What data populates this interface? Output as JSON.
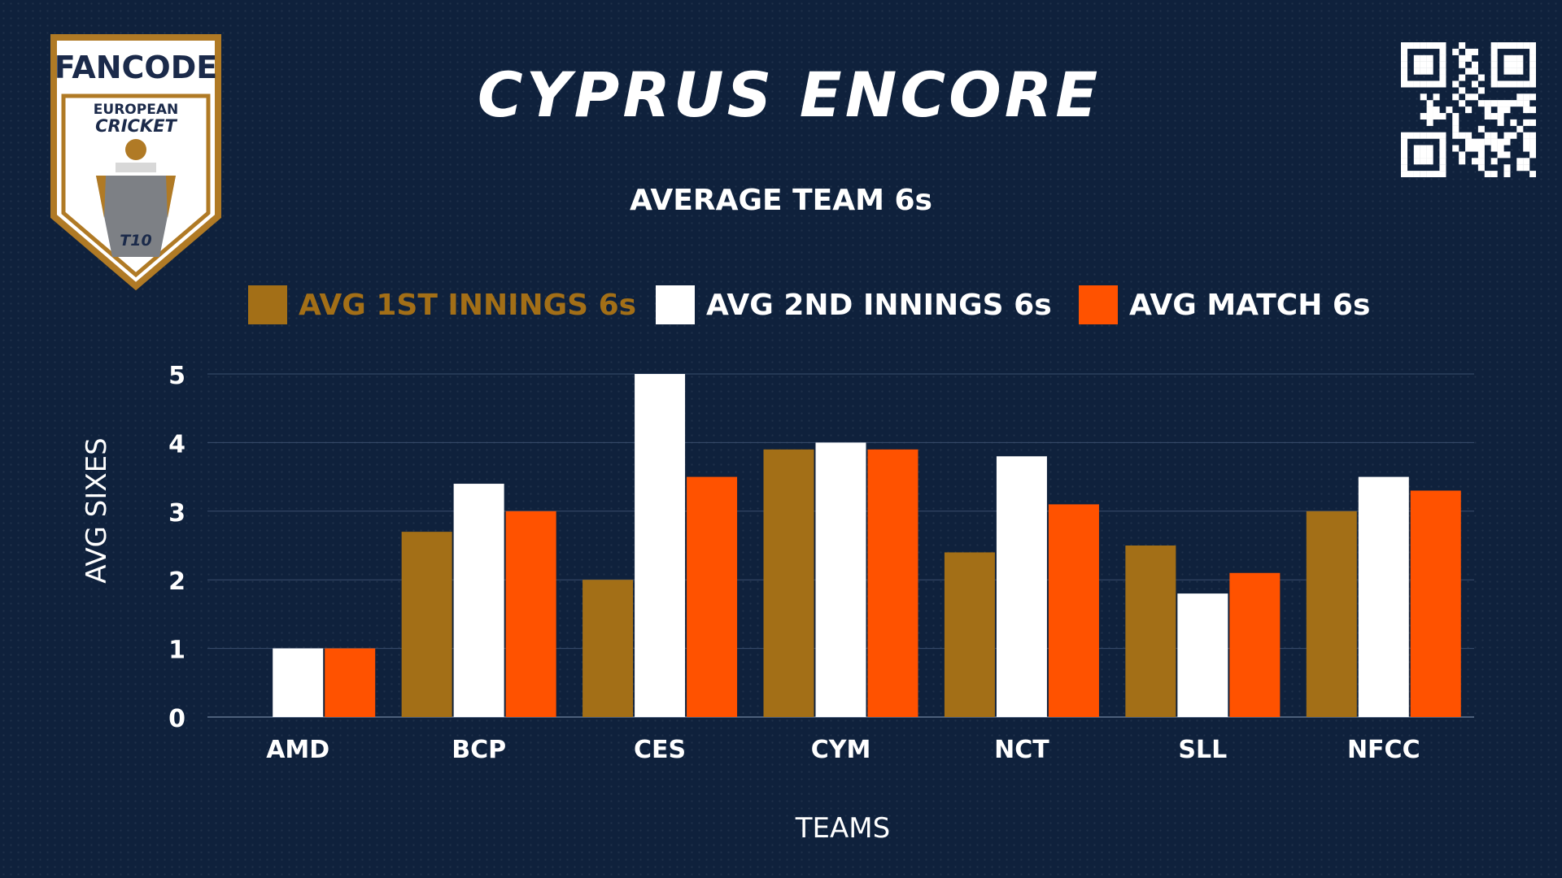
{
  "header": {
    "title": "CYPRUS ENCORE",
    "subtitle": "AVERAGE TEAM 6s"
  },
  "logo": {
    "brand": "FANCODE",
    "line1": "EUROPEAN",
    "line2": "CRICKET",
    "badge": "T10"
  },
  "colors": {
    "background": "#0f213c",
    "first_innings": "#a36f17",
    "second_innings": "#ffffff",
    "match": "#ff5200",
    "gridline": "#3a4e6c"
  },
  "chart_data": {
    "type": "bar",
    "title": "AVERAGE TEAM 6s",
    "xlabel": "TEAMS",
    "ylabel": "AVG SIXES",
    "categories": [
      "AMD",
      "BCP",
      "CES",
      "CYM",
      "NCT",
      "SLL",
      "NFCC"
    ],
    "ylim": [
      0,
      5
    ],
    "yticks": [
      "0",
      "1",
      "2",
      "3",
      "4",
      "5"
    ],
    "grid": true,
    "legend_position": "top",
    "series": [
      {
        "name": "AVG 1ST INNINGS 6s",
        "color": "#a36f17",
        "values": [
          0,
          2.7,
          2,
          3.9,
          2.4,
          2.5,
          3
        ]
      },
      {
        "name": "AVG 2ND INNINGS 6s",
        "color": "#ffffff",
        "values": [
          1,
          3.4,
          5,
          4,
          3.8,
          1.8,
          3.5
        ]
      },
      {
        "name": "AVG MATCH 6s",
        "color": "#ff5200",
        "values": [
          1,
          3,
          3.5,
          3.9,
          3.1,
          2.1,
          3.3
        ]
      }
    ]
  }
}
